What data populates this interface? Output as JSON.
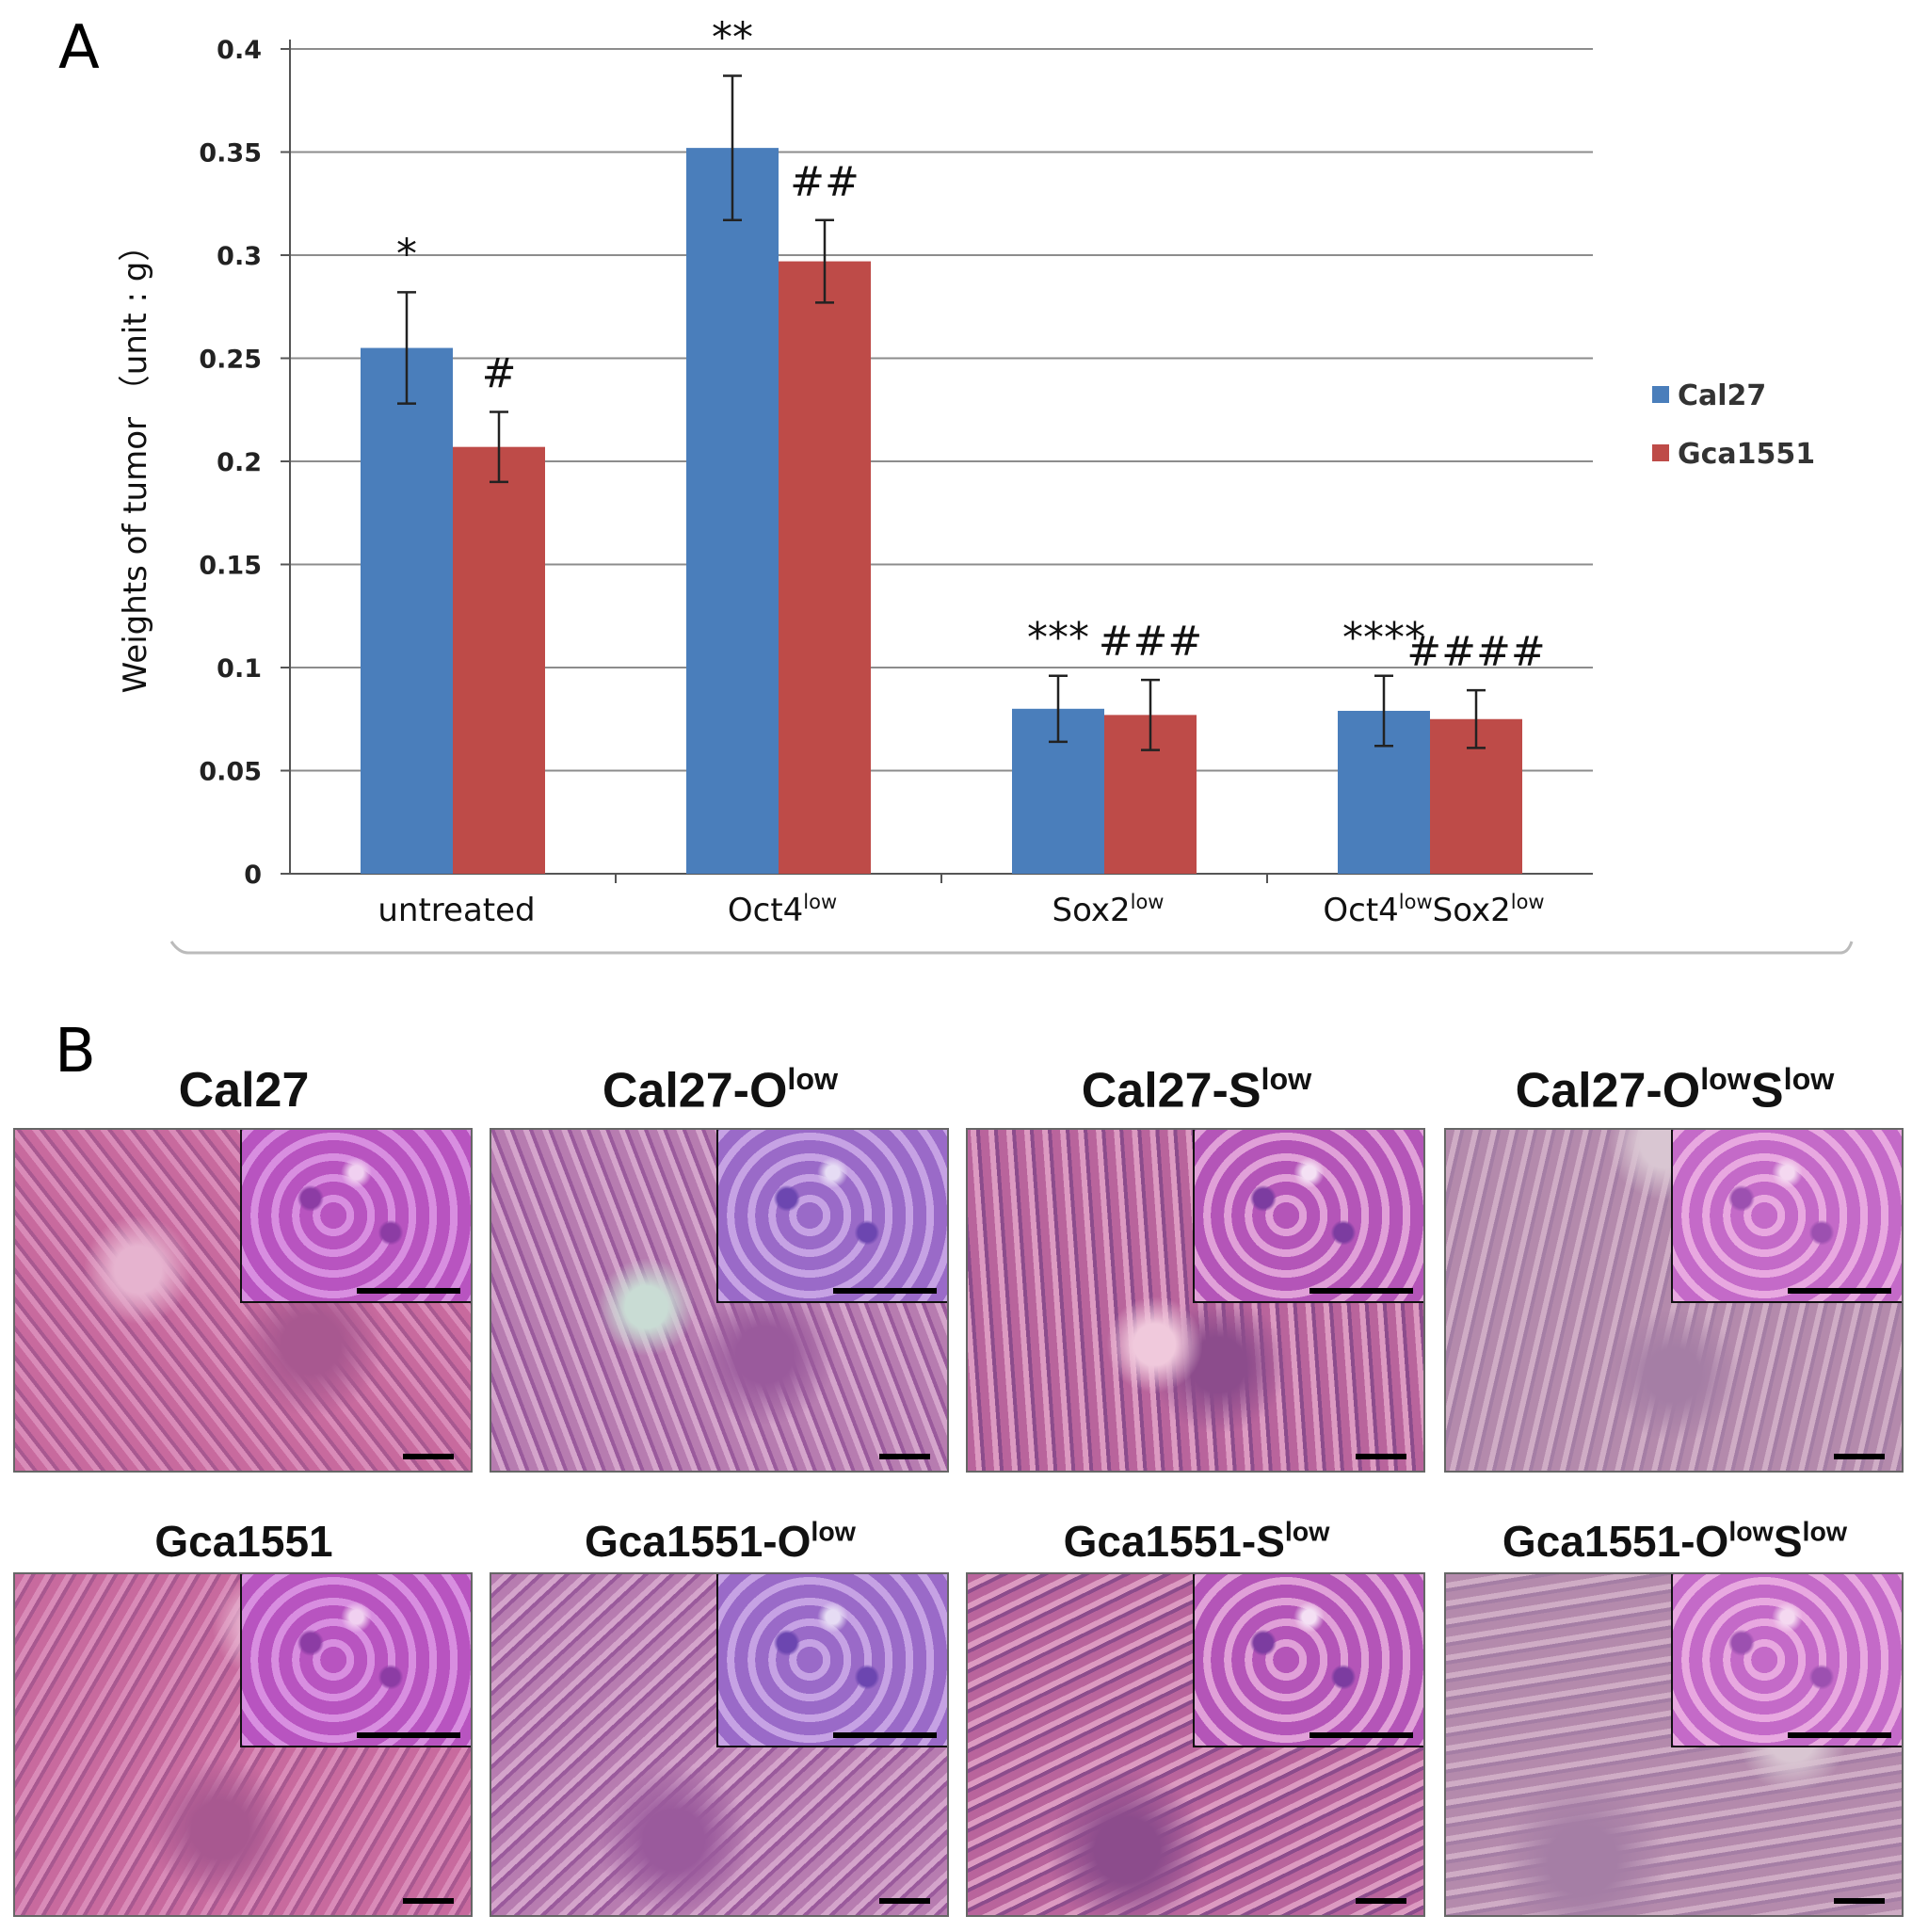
{
  "panelA": {
    "letter": "A"
  },
  "panelB": {
    "letter": "B"
  },
  "chart_data": {
    "type": "bar",
    "ylabel": "Weights of tumor （unit : g）",
    "ylim": [
      0,
      0.4
    ],
    "yticks": [
      "0",
      "0.05",
      "0.1",
      "0.15",
      "0.2",
      "0.25",
      "0.3",
      "0.35",
      "0.4"
    ],
    "grid": true,
    "legend_position": "right",
    "categories": [
      {
        "base": "untreated",
        "parts": [
          {
            "t": "untreated",
            "sup": ""
          }
        ]
      },
      {
        "base": "Oct4",
        "parts": [
          {
            "t": "Oct4",
            "sup": "low"
          }
        ]
      },
      {
        "base": "Sox2",
        "parts": [
          {
            "t": "Sox2",
            "sup": "low"
          }
        ]
      },
      {
        "base": "Oct4Sox2",
        "parts": [
          {
            "t": "Oct4",
            "sup": "low"
          },
          {
            "t": "Sox2",
            "sup": "low"
          }
        ]
      }
    ],
    "series": [
      {
        "name": "Cal27",
        "color": "#4a7ebb",
        "values": [
          0.255,
          0.352,
          0.08,
          0.079
        ],
        "errors": [
          0.027,
          0.035,
          0.016,
          0.017
        ],
        "annotations": [
          "*",
          "**",
          "***",
          "****"
        ]
      },
      {
        "name": "Gca1551",
        "color": "#be4b48",
        "values": [
          0.207,
          0.297,
          0.077,
          0.075
        ],
        "errors": [
          0.017,
          0.02,
          0.017,
          0.014
        ],
        "annotations": [
          "#",
          "##",
          "###",
          "####"
        ]
      }
    ]
  },
  "histology": {
    "rows": [
      [
        {
          "base": "Cal27",
          "o": "",
          "s": ""
        },
        {
          "base": "Cal27-O",
          "o": "low",
          "s": ""
        },
        {
          "base": "Cal27-S",
          "o": "low",
          "s": ""
        },
        {
          "base": "Cal27-O",
          "o": "low",
          "s2": "S",
          "s": "low"
        }
      ],
      [
        {
          "base": "Gca1551",
          "o": "",
          "s": ""
        },
        {
          "base": "Gca1551-O",
          "o": "low",
          "s": ""
        },
        {
          "base": "Gca1551-S",
          "o": "low",
          "s": ""
        },
        {
          "base": "Gca1551-O",
          "o": "low",
          "s2": "S",
          "s": "low"
        }
      ]
    ]
  }
}
